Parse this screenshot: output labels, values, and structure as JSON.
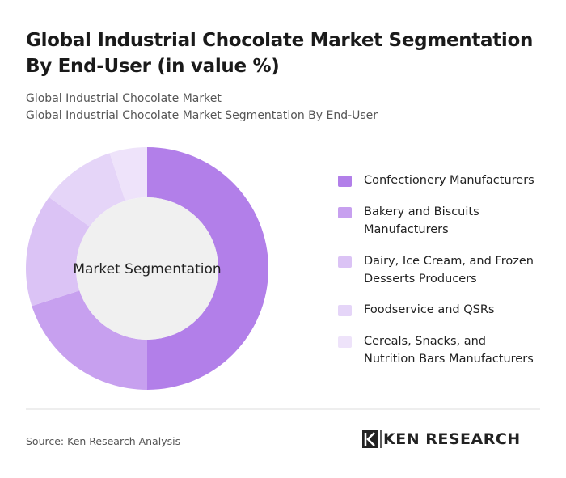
{
  "chart_data": {
    "type": "donut",
    "title": "Global Industrial Chocolate Market Segmentation By End-User (in value %)",
    "subtitle": "Global Industrial Chocolate Market",
    "subtitle2": "Global Industrial Chocolate Market Segmentation By End-User",
    "center_label": "Market Segmentation",
    "categories": [
      "Confectionery Manufacturers",
      "Bakery and Biscuits Manufacturers",
      "Dairy, Ice Cream, and Frozen Desserts Producers",
      "Foodservice and QSRs",
      "Cereals, Snacks, and Nutrition Bars Manufacturers"
    ],
    "values": [
      50,
      20,
      15,
      10,
      5
    ],
    "colors": [
      "#b27fe9",
      "#c7a0ef",
      "#dbc3f5",
      "#e5d5f8",
      "#eee3fa"
    ]
  },
  "source": "Source: Ken Research Analysis",
  "brand": "KEN RESEARCH"
}
